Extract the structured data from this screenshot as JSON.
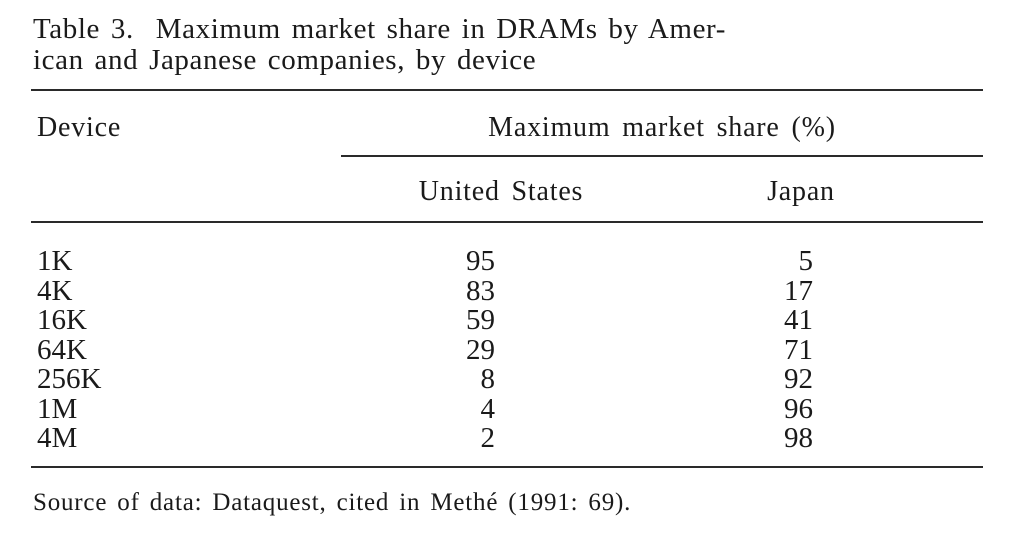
{
  "table": {
    "caption_label": "Table 3.",
    "caption_text": "Maximum market share in DRAMs by American and Japanese companies, by device",
    "caption_line1": "Maximum market share in DRAMs by Amer-",
    "caption_line2": "ican and Japanese companies, by device",
    "headers": {
      "device": "Device",
      "span": "Maximum market share (%)",
      "us": "United States",
      "japan": "Japan"
    },
    "rows": [
      {
        "device": "1K",
        "us": "95",
        "japan": "5"
      },
      {
        "device": "4K",
        "us": "83",
        "japan": "17"
      },
      {
        "device": "16K",
        "us": "59",
        "japan": "41"
      },
      {
        "device": "64K",
        "us": "29",
        "japan": "71"
      },
      {
        "device": "256K",
        "us": "8",
        "japan": "92"
      },
      {
        "device": "1M",
        "us": "4",
        "japan": "96"
      },
      {
        "device": "4M",
        "us": "2",
        "japan": "98"
      }
    ],
    "source": "Source of data: Dataquest, cited in Methé (1991: 69)."
  }
}
